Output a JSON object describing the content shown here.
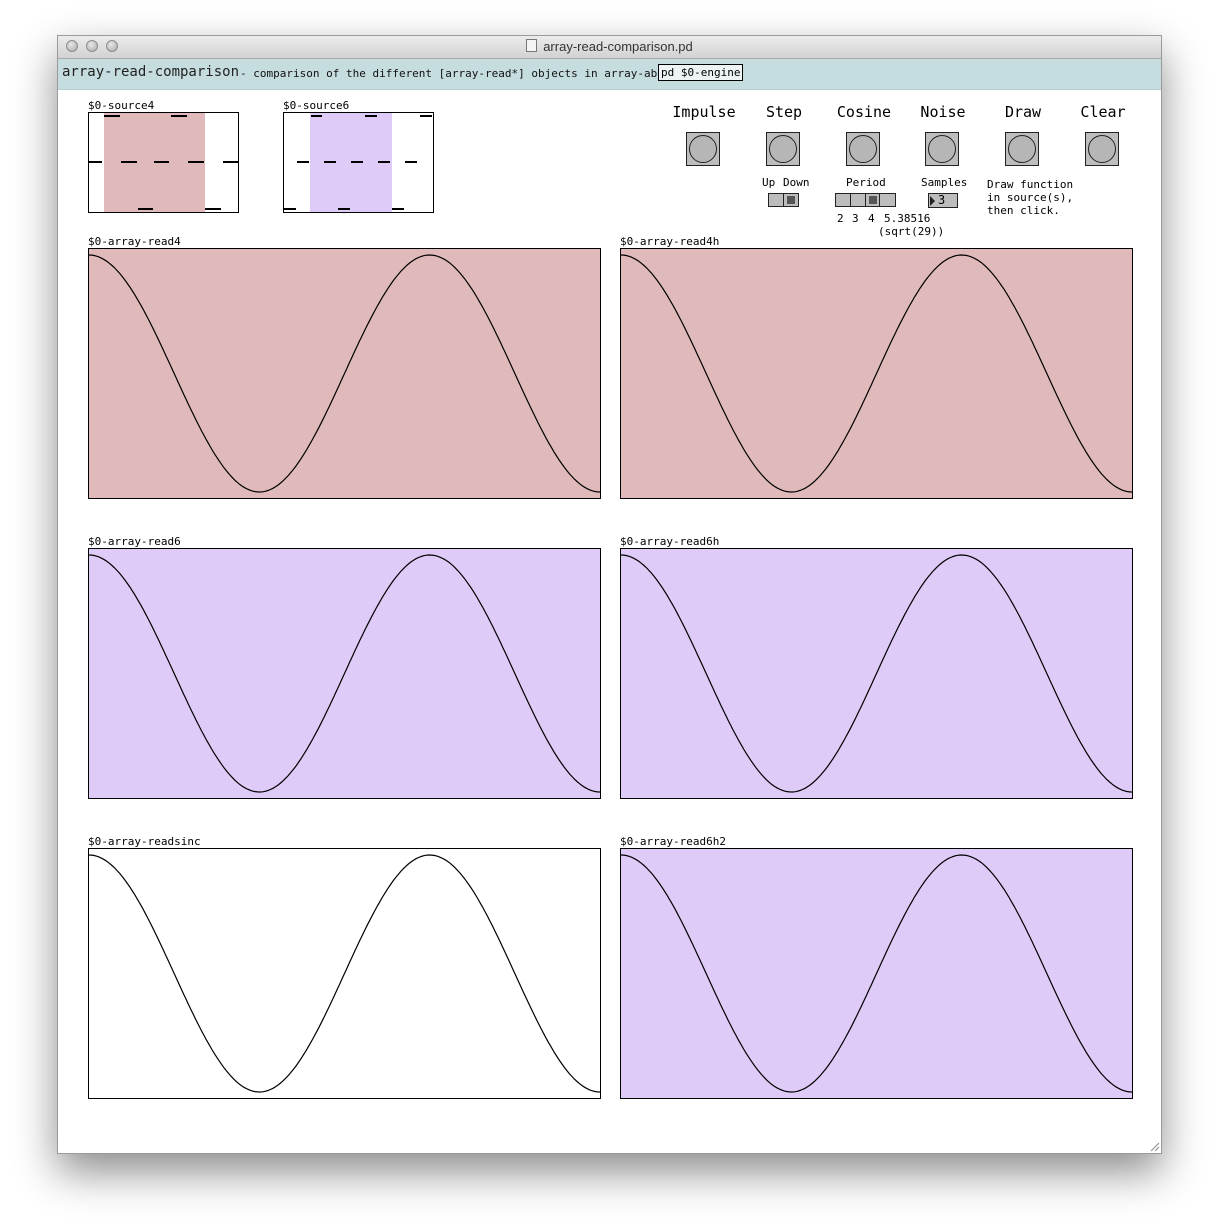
{
  "window": {
    "title": "array-read-comparison.pd"
  },
  "header": {
    "title": "array-read-comparison",
    "description": "- comparison of the different [array-read*] objects in array-abs.",
    "subpatch": "pd $0-engine"
  },
  "sources": [
    {
      "name": "$0-source4",
      "color": "#e0baba"
    },
    {
      "name": "$0-source6",
      "color": "#dfcbf7"
    }
  ],
  "controls": {
    "buttons": [
      "Impulse",
      "Step",
      "Cosine",
      "Noise",
      "Draw",
      "Clear"
    ],
    "step": {
      "up": "Up",
      "down": "Down",
      "selected_index": 1
    },
    "cosine": {
      "label": "Period",
      "ticks": [
        "2",
        "3",
        "4",
        "5.38516"
      ],
      "sqrt_note": "(sqrt(29))",
      "selected_index": 2
    },
    "noise": {
      "label": "Samples",
      "value": "3"
    },
    "draw_note": [
      "Draw function",
      "in source(s),",
      "then click."
    ]
  },
  "graphs": [
    {
      "name": "$0-array-read4",
      "color": "#e0baba"
    },
    {
      "name": "$0-array-read4h",
      "color": "#e0baba"
    },
    {
      "name": "$0-array-read6",
      "color": "#dfcbf7"
    },
    {
      "name": "$0-array-read6h",
      "color": "#dfcbf7"
    },
    {
      "name": "$0-array-readsinc",
      "color": "#ffffff"
    },
    {
      "name": "$0-array-read6h2",
      "color": "#dfcbf7"
    }
  ],
  "waveform": {
    "periods_shown": 1.5,
    "function": "cosine"
  }
}
